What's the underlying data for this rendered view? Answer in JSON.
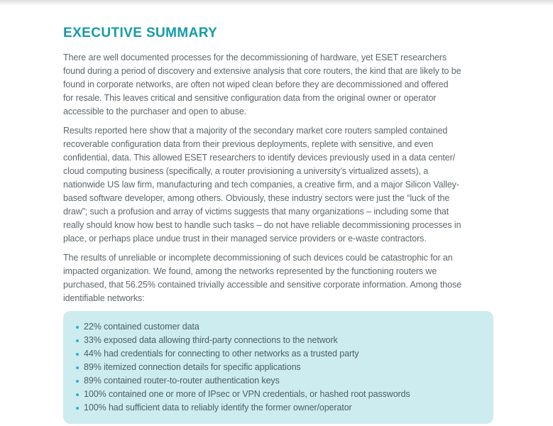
{
  "colors": {
    "accent": "#149ba8",
    "body-text": "#5c676b",
    "box-bg": "#cdecf0",
    "box-text": "#4d6066",
    "bullet-dot": "#2bb4c3",
    "top-shadow": "#dedede"
  },
  "heading": "EXECUTIVE SUMMARY",
  "paragraphs": {
    "p1_lines": [
      "There are well documented processes for the decommissioning of hardware, yet ESET researchers",
      "found during a period of discovery and extensive analysis that core routers, the kind that are likely to be",
      "found in corporate networks, are often not wiped clean before they are decommissioned and offered",
      "for resale. This leaves critical and sensitive configuration data from the original owner or operator",
      "accessible to the purchaser and open to abuse."
    ],
    "p2_lines": [
      "Results reported here show that a majority of the secondary market core routers sampled contained",
      "recoverable configuration data from their previous deployments, replete with sensitive, and even",
      "confidential, data. This allowed ESET researchers to identify devices previously used in a data center/",
      "cloud computing business (specifically, a router provisioning a university’s virtualized assets), a",
      "nationwide US law firm, manufacturing and tech companies, a creative firm, and a major Silicon Valley-",
      "based software developer, among others. Obviously, these industry sectors were just the “luck of the",
      "draw”; such a profusion and array of victims suggests that many organizations – including some that",
      "really should know how best to handle such tasks – do not have reliable decommissioning processes in",
      "place, or perhaps place undue trust in their managed service providers or e-waste contractors."
    ],
    "p3_lines": [
      "The results of unreliable or incomplete decommissioning of such devices could be catastrophic for an",
      "impacted organization. We found, among the networks represented by the functioning routers we",
      "purchased, that 56.25% contained trivially accessible and sensitive corporate information. Among those",
      "identifiable networks:"
    ]
  },
  "bullet_box": {
    "items": [
      "22% contained customer data",
      "33% exposed data allowing third-party connections to the network",
      "44% had credentials for connecting to other networks as a trusted party",
      "89% itemized connection details for specific applications",
      "89% contained router-to-router authentication keys",
      "100% contained one or more of IPsec or VPN credentials, or hashed root passwords",
      "100% had sufficient data to reliably identify the former owner/operator"
    ]
  }
}
